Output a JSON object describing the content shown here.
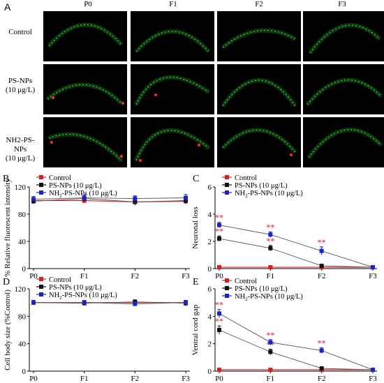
{
  "figure": {
    "panel_letters": [
      "A",
      "B",
      "C",
      "D",
      "E"
    ],
    "micrograph": {
      "columns": [
        "P0",
        "F1",
        "F2",
        "F3"
      ],
      "rows": [
        "Control",
        "PS-NPs (10 μg/L)",
        "NH2-PS-NPs (10 μg/L)"
      ],
      "row_label_parts": [
        {
          "line1": "Control",
          "line2": ""
        },
        {
          "line1": "PS-NPs",
          "line2": "(10 μg/L)"
        },
        {
          "line1": "NH2-PS-NPs",
          "line2": "(10 μg/L)"
        }
      ],
      "colors": {
        "background": "#000000",
        "neuron": "#38d438",
        "marker": "#ff2a2a"
      }
    }
  },
  "colors": {
    "control": "#d62020",
    "ps": "#111111",
    "nh2": "#1c24c8",
    "sig": "#e0556a"
  },
  "legend": [
    "Control",
    "PS-NPs (10 μg/L)",
    "NH2-PS-NPs (10 μg/L)"
  ],
  "chart_data": [
    {
      "panel": "B",
      "type": "line",
      "ylabel": "% Relative fluorescent intensity",
      "categories": [
        "P0",
        "F1",
        "F2",
        "F3"
      ],
      "ylim": [
        0,
        120
      ],
      "yticks": [
        0,
        40,
        80,
        120
      ],
      "series": [
        {
          "name": "Control",
          "values": [
            100,
            100,
            98,
            99
          ],
          "errors": [
            4,
            4,
            4,
            4
          ],
          "sig": [
            false,
            false,
            false,
            false
          ]
        },
        {
          "name": "PS-NPs (10 μg/L)",
          "values": [
            99,
            103,
            98,
            100
          ],
          "errors": [
            4,
            4,
            5,
            5
          ],
          "sig": [
            false,
            false,
            false,
            false
          ]
        },
        {
          "name": "NH2-PS-NPs (10 μg/L)",
          "values": [
            102,
            104,
            103,
            104
          ],
          "errors": [
            4,
            5,
            4,
            5
          ],
          "sig": [
            false,
            false,
            false,
            false
          ]
        }
      ]
    },
    {
      "panel": "C",
      "type": "line",
      "ylabel": "Neuronal loss",
      "categories": [
        "P0",
        "F1",
        "F2",
        "F3"
      ],
      "ylim": [
        0,
        6
      ],
      "yticks": [
        0,
        2,
        4,
        6
      ],
      "series": [
        {
          "name": "Control",
          "values": [
            0.1,
            0.1,
            0.1,
            0.1
          ],
          "errors": [
            0.05,
            0.05,
            0.05,
            0.05
          ],
          "sig": [
            false,
            false,
            false,
            false
          ]
        },
        {
          "name": "PS-NPs (10 μg/L)",
          "values": [
            2.2,
            1.5,
            0.2,
            0.1
          ],
          "errors": [
            0.2,
            0.2,
            0.1,
            0.05
          ],
          "sig": [
            true,
            true,
            false,
            false
          ]
        },
        {
          "name": "NH2-PS-NPs (10 μg/L)",
          "values": [
            3.2,
            2.5,
            1.3,
            0.1
          ],
          "errors": [
            0.2,
            0.2,
            0.3,
            0.05
          ],
          "sig": [
            true,
            true,
            true,
            false
          ]
        }
      ]
    },
    {
      "panel": "D",
      "type": "line",
      "ylabel": "Cell body size (%Control)",
      "categories": [
        "P0",
        "F1",
        "F2",
        "F3"
      ],
      "ylim": [
        0,
        120
      ],
      "yticks": [
        0,
        40,
        80,
        120
      ],
      "series": [
        {
          "name": "Control",
          "values": [
            100,
            100,
            100,
            100
          ],
          "errors": [
            3,
            3,
            3,
            3
          ],
          "sig": [
            false,
            false,
            false,
            false
          ]
        },
        {
          "name": "PS-NPs (10 μg/L)",
          "values": [
            100,
            99,
            101,
            99
          ],
          "errors": [
            3,
            3,
            3,
            4
          ],
          "sig": [
            false,
            false,
            false,
            false
          ]
        },
        {
          "name": "NH2-PS-NPs (10 μg/L)",
          "values": [
            100,
            100,
            98,
            100
          ],
          "errors": [
            3,
            3,
            3,
            3
          ],
          "sig": [
            false,
            false,
            false,
            false
          ]
        }
      ]
    },
    {
      "panel": "E",
      "type": "line",
      "ylabel": "Ventral cord gap",
      "categories": [
        "P0",
        "F1",
        "F2",
        "F3"
      ],
      "ylim": [
        0,
        6
      ],
      "yticks": [
        0,
        2,
        4,
        6
      ],
      "series": [
        {
          "name": "Control",
          "values": [
            0.1,
            0.1,
            0.1,
            0.1
          ],
          "errors": [
            0.05,
            0.05,
            0.05,
            0.05
          ],
          "sig": [
            false,
            false,
            false,
            false
          ]
        },
        {
          "name": "PS-NPs (10 μg/L)",
          "values": [
            3.0,
            1.4,
            0.2,
            0.1
          ],
          "errors": [
            0.3,
            0.2,
            0.1,
            0.05
          ],
          "sig": [
            true,
            true,
            false,
            false
          ]
        },
        {
          "name": "NH2-PS-NPs (10 μg/L)",
          "values": [
            4.2,
            2.1,
            1.5,
            0.1
          ],
          "errors": [
            0.3,
            0.2,
            0.2,
            0.05
          ],
          "sig": [
            true,
            true,
            true,
            false
          ]
        }
      ]
    }
  ]
}
